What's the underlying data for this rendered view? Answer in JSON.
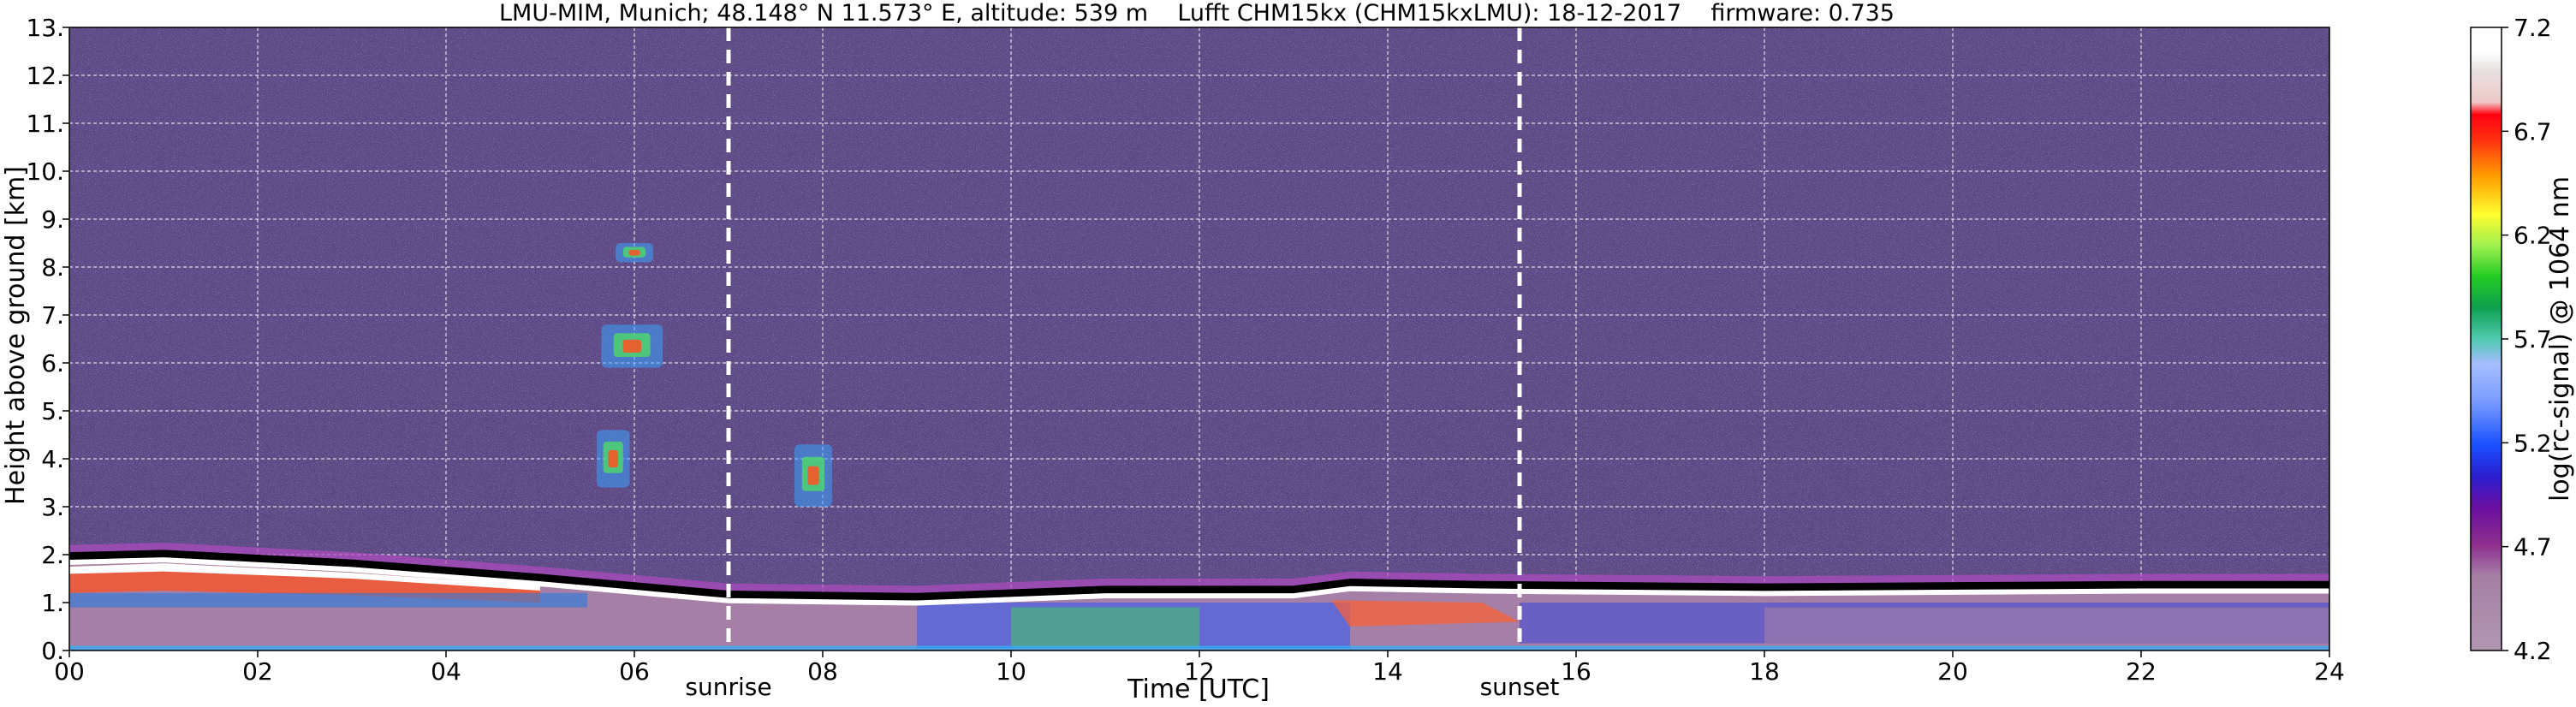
{
  "chart_data": {
    "type": "heatmap",
    "title": "LMU-MIM, Munich; 48.148° N 11.573° E, altitude: 539 m    Lufft CHM15kx (CHM15kxLMU): 18-12-2017    firmware: 0.735",
    "xlabel": "Time [UTC]",
    "ylabel": "Height above ground [km]",
    "x_range": [
      0,
      24
    ],
    "y_range": [
      0,
      13
    ],
    "x_ticks": [
      "00",
      "02",
      "04",
      "06",
      "08",
      "10",
      "12",
      "14",
      "16",
      "18",
      "20",
      "22",
      "24"
    ],
    "y_ticks": [
      "0.",
      "1.",
      "2.",
      "3.",
      "4.",
      "5.",
      "6.",
      "7.",
      "8.",
      "9.",
      "10.",
      "11.",
      "12.",
      "13."
    ],
    "grid": true,
    "colorbar": {
      "label": "log(rc-signal) @ 1064 nm",
      "range": [
        4.2,
        7.2
      ],
      "ticks": [
        "4.2",
        "4.7",
        "5.2",
        "5.7",
        "6.2",
        "6.7",
        "7.2"
      ]
    },
    "annotations": [
      {
        "text": "sunrise",
        "time": 7.0
      },
      {
        "text": "sunset",
        "time": 15.4
      }
    ],
    "boundary_layer_top_km": [
      {
        "time": 0.0,
        "height": 1.9
      },
      {
        "time": 1.0,
        "height": 1.95
      },
      {
        "time": 3.0,
        "height": 1.75
      },
      {
        "time": 5.0,
        "height": 1.45
      },
      {
        "time": 7.0,
        "height": 1.1
      },
      {
        "time": 9.0,
        "height": 1.05
      },
      {
        "time": 11.0,
        "height": 1.2
      },
      {
        "time": 13.0,
        "height": 1.2
      },
      {
        "time": 13.6,
        "height": 1.35
      },
      {
        "time": 15.0,
        "height": 1.3
      },
      {
        "time": 18.0,
        "height": 1.25
      },
      {
        "time": 22.0,
        "height": 1.3
      },
      {
        "time": 24.0,
        "height": 1.3
      }
    ],
    "cloud_features": [
      {
        "time_start": 5.6,
        "time_end": 5.95,
        "height_bottom": 3.4,
        "height_top": 4.6
      },
      {
        "time_start": 5.65,
        "time_end": 6.3,
        "height_bottom": 5.9,
        "height_top": 6.8
      },
      {
        "time_start": 5.8,
        "time_end": 6.2,
        "height_bottom": 8.1,
        "height_top": 8.5
      },
      {
        "time_start": 7.7,
        "time_end": 8.1,
        "height_bottom": 3.0,
        "height_top": 4.3
      }
    ]
  }
}
